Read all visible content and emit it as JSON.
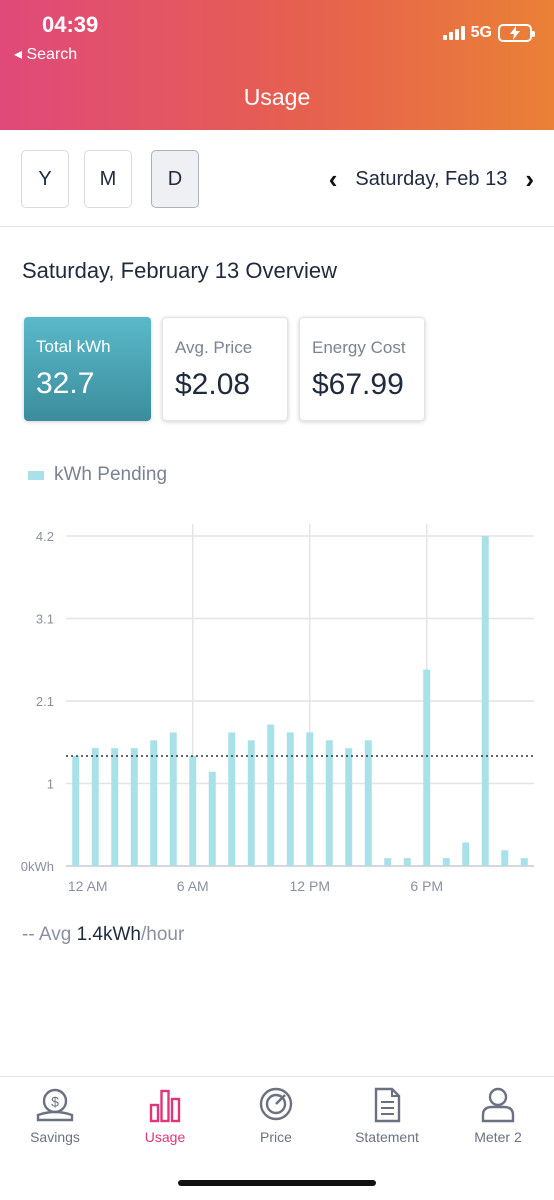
{
  "status_bar": {
    "time": "04:39",
    "back_label": "◂ Search",
    "network": "5G"
  },
  "header": {
    "title": "Usage"
  },
  "period": {
    "options": [
      "Y",
      "M",
      "D"
    ],
    "active": "D",
    "date_label": "Saturday, Feb 13"
  },
  "overview": {
    "title": "Saturday, February 13 Overview"
  },
  "cards": [
    {
      "label": "Total kWh",
      "value": "32.7"
    },
    {
      "label": "Avg. Price",
      "value": "$2.08"
    },
    {
      "label": "Energy Cost",
      "value": "$67.99"
    }
  ],
  "legend": {
    "label": "kWh Pending",
    "color": "#a8e1e8"
  },
  "chart_data": {
    "type": "bar",
    "ytick_labels": [
      "0kWh",
      "1",
      "2.1",
      "3.1",
      "4.2"
    ],
    "yticks": [
      0,
      1.05,
      2.1,
      3.15,
      4.2
    ],
    "ylim": [
      0,
      4.2
    ],
    "xtick_labels": [
      "12 AM",
      "6 AM",
      "12 PM",
      "6 PM"
    ],
    "xtick_hours": [
      0,
      6,
      12,
      18
    ],
    "categories": [
      "0",
      "1",
      "2",
      "3",
      "4",
      "5",
      "6",
      "7",
      "8",
      "9",
      "10",
      "11",
      "12",
      "13",
      "14",
      "15",
      "16",
      "17",
      "18",
      "19",
      "20",
      "21",
      "22",
      "23"
    ],
    "values": [
      1.4,
      1.5,
      1.5,
      1.5,
      1.6,
      1.7,
      1.4,
      1.2,
      1.7,
      1.6,
      1.8,
      1.7,
      1.7,
      1.6,
      1.5,
      1.6,
      0.1,
      0.1,
      2.5,
      0.1,
      0.3,
      4.2,
      0.2,
      0.1
    ],
    "average": 1.4,
    "bar_color": "#a8e1e8",
    "grid": true
  },
  "average": {
    "prefix": "-- Avg",
    "value": "1.4kWh",
    "suffix": "/hour"
  },
  "tabbar": {
    "items": [
      {
        "label": "Savings",
        "icon": "savings-icon"
      },
      {
        "label": "Usage",
        "icon": "usage-icon"
      },
      {
        "label": "Price",
        "icon": "price-icon"
      },
      {
        "label": "Statement",
        "icon": "statement-icon"
      },
      {
        "label": "Meter 2",
        "icon": "meter-icon"
      }
    ],
    "active_color": "#e0357a",
    "inactive_color": "#6b7180"
  }
}
